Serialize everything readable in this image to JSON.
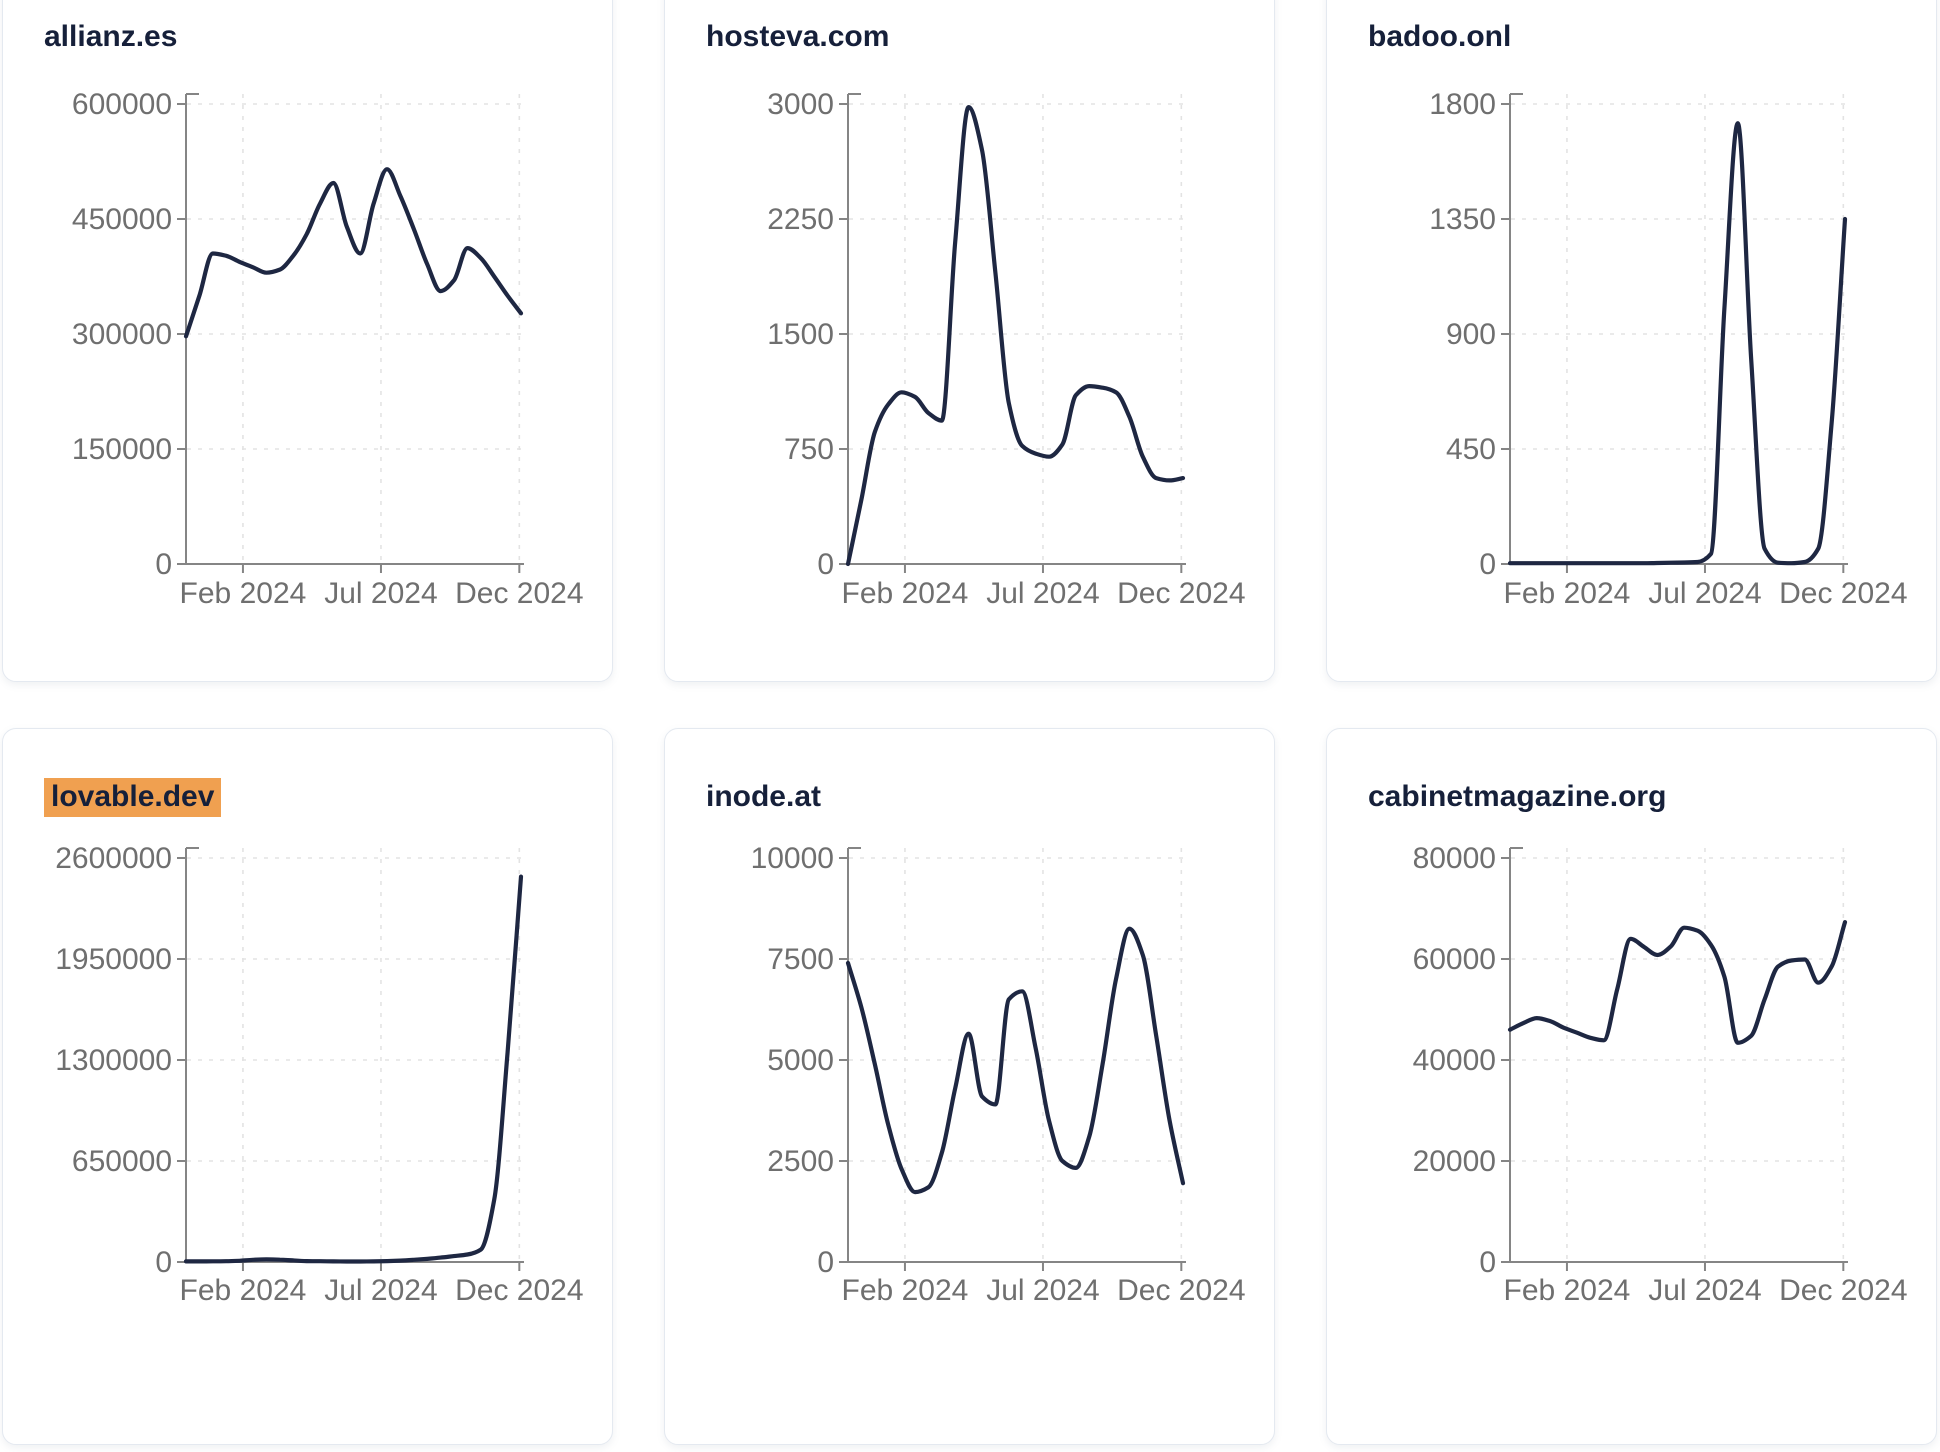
{
  "style": {
    "page_bg": "#ffffff",
    "card_bg": "#ffffff",
    "card_border": "#e4e9f0",
    "line_color": "#1e2742",
    "title_color": "#16203a",
    "tick_label_color": "#6f6f6f",
    "axis_color": "#858585",
    "grid_color": "#e3e3e3",
    "highlight_bg": "#f0a050"
  },
  "chart_data": [
    {
      "type": "line",
      "title": "allianz.es",
      "title_highlighted": false,
      "x_tick_labels": [
        "Feb 2024",
        "Jul 2024",
        "Dec 2024"
      ],
      "x_range": [
        "Jan 2024",
        "Dec 2024"
      ],
      "y_ticks": [
        0,
        150000,
        300000,
        450000,
        600000
      ],
      "ylim": [
        0,
        600000
      ],
      "grid": true,
      "legend": "none",
      "values": [
        297000,
        350000,
        405000,
        402000,
        394000,
        387000,
        380000,
        384000,
        402000,
        430000,
        470000,
        497000,
        440000,
        405000,
        470000,
        515000,
        480000,
        437000,
        391000,
        356000,
        370000,
        412000,
        399000,
        375000,
        350000,
        327000
      ]
    },
    {
      "type": "line",
      "title": "hosteva.com",
      "title_highlighted": false,
      "x_tick_labels": [
        "Feb 2024",
        "Jul 2024",
        "Dec 2024"
      ],
      "x_range": [
        "Jan 2024",
        "Dec 2024"
      ],
      "y_ticks": [
        0,
        750,
        1500,
        2250,
        3000
      ],
      "ylim": [
        0,
        3000
      ],
      "grid": true,
      "legend": "none",
      "values": [
        0,
        420,
        860,
        1040,
        1120,
        1090,
        985,
        935,
        2100,
        2980,
        2700,
        1900,
        1050,
        770,
        720,
        700,
        780,
        1100,
        1160,
        1150,
        1120,
        960,
        700,
        560,
        545,
        560
      ]
    },
    {
      "type": "line",
      "title": "badoo.onl",
      "title_highlighted": false,
      "x_tick_labels": [
        "Feb 2024",
        "Jul 2024",
        "Dec 2024"
      ],
      "x_range": [
        "Jan 2024",
        "Dec 2024"
      ],
      "y_ticks": [
        0,
        450,
        900,
        1350,
        1800
      ],
      "ylim": [
        0,
        1800
      ],
      "grid": true,
      "legend": "none",
      "values": [
        3,
        3,
        3,
        3,
        3,
        3,
        3,
        3,
        3,
        3,
        3,
        4,
        5,
        6,
        8,
        40,
        1000,
        1725,
        800,
        60,
        5,
        3,
        8,
        60,
        550,
        1350
      ]
    },
    {
      "type": "line",
      "title": "lovable.dev",
      "title_highlighted": true,
      "x_tick_labels": [
        "Feb 2024",
        "Jul 2024",
        "Dec 2024"
      ],
      "x_range": [
        "Jan 2024",
        "Dec 2024"
      ],
      "y_ticks": [
        0,
        650000,
        1300000,
        1950000,
        2600000
      ],
      "ylim": [
        0,
        2600000
      ],
      "grid": true,
      "legend": "none",
      "values": [
        4000,
        4000,
        4500,
        5000,
        8000,
        14000,
        17000,
        15000,
        10000,
        6000,
        5000,
        4000,
        3500,
        3500,
        4000,
        6000,
        9000,
        14000,
        20000,
        28000,
        38000,
        48000,
        80000,
        400000,
        1350000,
        2480000
      ]
    },
    {
      "type": "line",
      "title": "inode.at",
      "title_highlighted": false,
      "x_tick_labels": [
        "Feb 2024",
        "Jul 2024",
        "Dec 2024"
      ],
      "x_range": [
        "Jan 2024",
        "Dec 2024"
      ],
      "y_ticks": [
        0,
        2500,
        5000,
        7500,
        10000
      ],
      "ylim": [
        0,
        10000
      ],
      "grid": true,
      "legend": "none",
      "values": [
        7400,
        6300,
        4900,
        3400,
        2300,
        1730,
        1850,
        2700,
        4300,
        5650,
        4100,
        3900,
        6500,
        6700,
        5300,
        3500,
        2500,
        2330,
        3100,
        4900,
        7000,
        8250,
        7600,
        5600,
        3500,
        1950
      ]
    },
    {
      "type": "line",
      "title": "cabinetmagazine.org",
      "title_highlighted": false,
      "x_tick_labels": [
        "Feb 2024",
        "Jul 2024",
        "Dec 2024"
      ],
      "x_range": [
        "Jan 2024",
        "Dec 2024"
      ],
      "y_ticks": [
        0,
        20000,
        40000,
        60000,
        80000
      ],
      "ylim": [
        0,
        80000
      ],
      "grid": true,
      "legend": "none",
      "values": [
        46000,
        47300,
        48300,
        47700,
        46400,
        45400,
        44400,
        43900,
        54000,
        64000,
        62400,
        60800,
        62500,
        66200,
        65600,
        62800,
        56500,
        43400,
        44800,
        52000,
        58500,
        59700,
        59900,
        55300,
        58500,
        67300
      ]
    }
  ]
}
